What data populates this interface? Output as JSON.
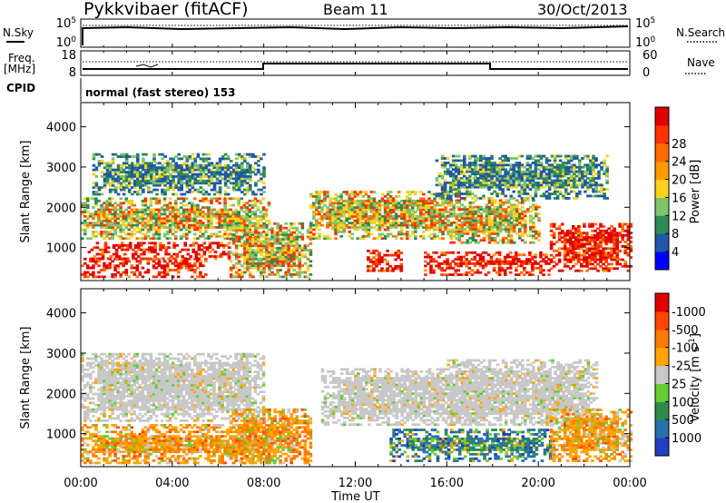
{
  "header": {
    "station": "Pykkvibaer (fitACF)",
    "beam": "Beam 11",
    "date": "30/Oct/2013"
  },
  "noise_panel": {
    "left_label": "N.Sky",
    "right_label": "N.Search",
    "left_ticks": [
      "10^5",
      "10^0"
    ],
    "right_ticks": [
      "10^5",
      "10^0"
    ]
  },
  "freq_panel": {
    "left_label_1": "Freq.",
    "left_label_2": "[MHz]",
    "right_label": "Nave",
    "left_ticks": [
      "18",
      "8"
    ],
    "right_ticks": [
      "60",
      "0"
    ],
    "cpid_label": "CPID",
    "cpid_text": "normal (fast stereo) 153"
  },
  "x_axis": {
    "label": "Time UT",
    "ticks": [
      "00:00",
      "04:00",
      "08:00",
      "12:00",
      "16:00",
      "20:00",
      "00:00"
    ]
  },
  "chart_data": [
    {
      "type": "heatmap",
      "quantity": "Power",
      "ylabel": "Slant Range [km]",
      "yticks": [
        1000,
        2000,
        3000,
        4000
      ],
      "ylim": [
        180,
        4600
      ],
      "xlim_hours": [
        0,
        24
      ],
      "colorbar": {
        "label": "Power [dB]",
        "tick_labels": [
          "4",
          "8",
          "12",
          "16",
          "20",
          "24",
          "28"
        ],
        "colors": [
          "#0000ff",
          "#2156a8",
          "#2e8a55",
          "#7fc46a",
          "#ffd21e",
          "#ff9a00",
          "#ff6a00",
          "#ff3300",
          "#e00000"
        ]
      },
      "echo_regions": [
        {
          "t0": 0.0,
          "t1": 5.5,
          "r0": 250,
          "r1": 700,
          "level": "strong"
        },
        {
          "t0": 0.3,
          "t1": 6.5,
          "r0": 700,
          "r1": 1100,
          "level": "strong"
        },
        {
          "t0": 0.0,
          "t1": 8.2,
          "r0": 1200,
          "r1": 2200,
          "level": "moderate"
        },
        {
          "t0": 0.5,
          "t1": 8.0,
          "r0": 2300,
          "r1": 3300,
          "level": "weak"
        },
        {
          "t0": 6.5,
          "t1": 10.0,
          "r0": 250,
          "r1": 1600,
          "level": "moderate"
        },
        {
          "t0": 10.0,
          "t1": 16.5,
          "r0": 1200,
          "r1": 2400,
          "level": "moderate"
        },
        {
          "t0": 12.5,
          "t1": 14.0,
          "r0": 400,
          "r1": 900,
          "level": "strong"
        },
        {
          "t0": 15.0,
          "t1": 20.5,
          "r0": 300,
          "r1": 900,
          "level": "strong"
        },
        {
          "t0": 16.0,
          "t1": 20.0,
          "r0": 1100,
          "r1": 2200,
          "level": "moderate"
        },
        {
          "t0": 15.5,
          "t1": 23.0,
          "r0": 2200,
          "r1": 3300,
          "level": "weak"
        },
        {
          "t0": 20.5,
          "t1": 24.0,
          "r0": 400,
          "r1": 1600,
          "level": "strong"
        }
      ]
    },
    {
      "type": "heatmap",
      "quantity": "Velocity",
      "ylabel": "Slant Range [km]",
      "yticks": [
        1000,
        2000,
        3000,
        4000
      ],
      "ylim": [
        180,
        4600
      ],
      "xlim_hours": [
        0,
        24
      ],
      "colorbar": {
        "label": "Velocity [m s^-1]",
        "tick_labels": [
          "1000",
          "500",
          "100",
          "25",
          "-25",
          "-100",
          "-500",
          "-1000"
        ],
        "colors": [
          "#1f3fbf",
          "#2a6fb0",
          "#2f8a4a",
          "#66cc33",
          "#c8c8c8",
          "#ffa500",
          "#ff7a00",
          "#ff4500",
          "#e00000"
        ]
      },
      "echo_regions": [
        {
          "t0": 0.0,
          "t1": 8.5,
          "r0": 250,
          "r1": 1200,
          "level": "negative"
        },
        {
          "t0": 0.0,
          "t1": 8.0,
          "r0": 1300,
          "r1": 3000,
          "level": "ground"
        },
        {
          "t0": 6.5,
          "t1": 10.0,
          "r0": 250,
          "r1": 1600,
          "level": "negative"
        },
        {
          "t0": 10.5,
          "t1": 17.5,
          "r0": 1200,
          "r1": 2600,
          "level": "ground"
        },
        {
          "t0": 13.5,
          "t1": 20.5,
          "r0": 300,
          "r1": 1100,
          "level": "positive"
        },
        {
          "t0": 16.0,
          "t1": 22.5,
          "r0": 1200,
          "r1": 2800,
          "level": "ground"
        },
        {
          "t0": 20.5,
          "t1": 24.0,
          "r0": 300,
          "r1": 1600,
          "level": "negative"
        }
      ]
    }
  ],
  "colors": {
    "frame": "#000000",
    "background": "#ffffff"
  }
}
